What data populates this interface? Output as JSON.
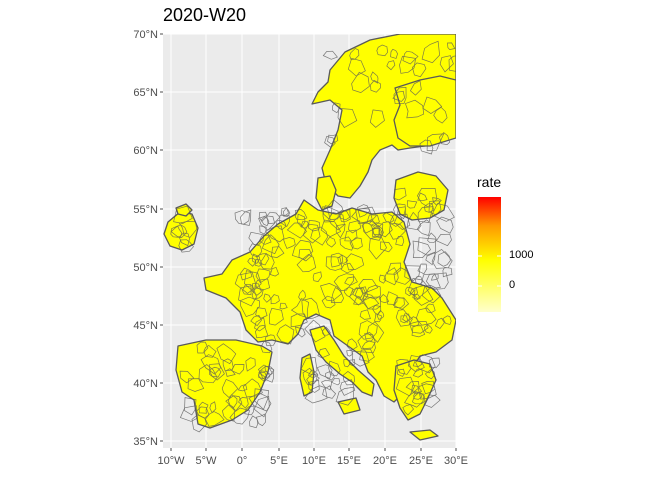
{
  "title": "2020-W20",
  "colors": {
    "panel_background": "#EBEBEB",
    "grid": "#FFFFFF",
    "region_fill": "#FFFF00",
    "region_border": "#595959",
    "scale_low": "#FFFFCC",
    "scale_mid": "#FFFF00",
    "scale_high": "#FF0000"
  },
  "map": {
    "projection": "longitude-latitude",
    "x_ticks": [
      "10°W",
      "5°W",
      "0°",
      "5°E",
      "10°E",
      "15°E",
      "20°E",
      "25°E",
      "30°E"
    ],
    "y_ticks": [
      "35°N",
      "40°N",
      "45°N",
      "50°N",
      "55°N",
      "60°N",
      "65°N",
      "70°N"
    ],
    "lon_range": [
      -10,
      30
    ],
    "lat_range": [
      35,
      70
    ],
    "regions_fill_value": "all regions near 0 (yellow)"
  },
  "legend": {
    "title": "rate",
    "breaks": [
      "1000",
      "0"
    ],
    "type": "continuous colorbar",
    "placement": "right"
  }
}
